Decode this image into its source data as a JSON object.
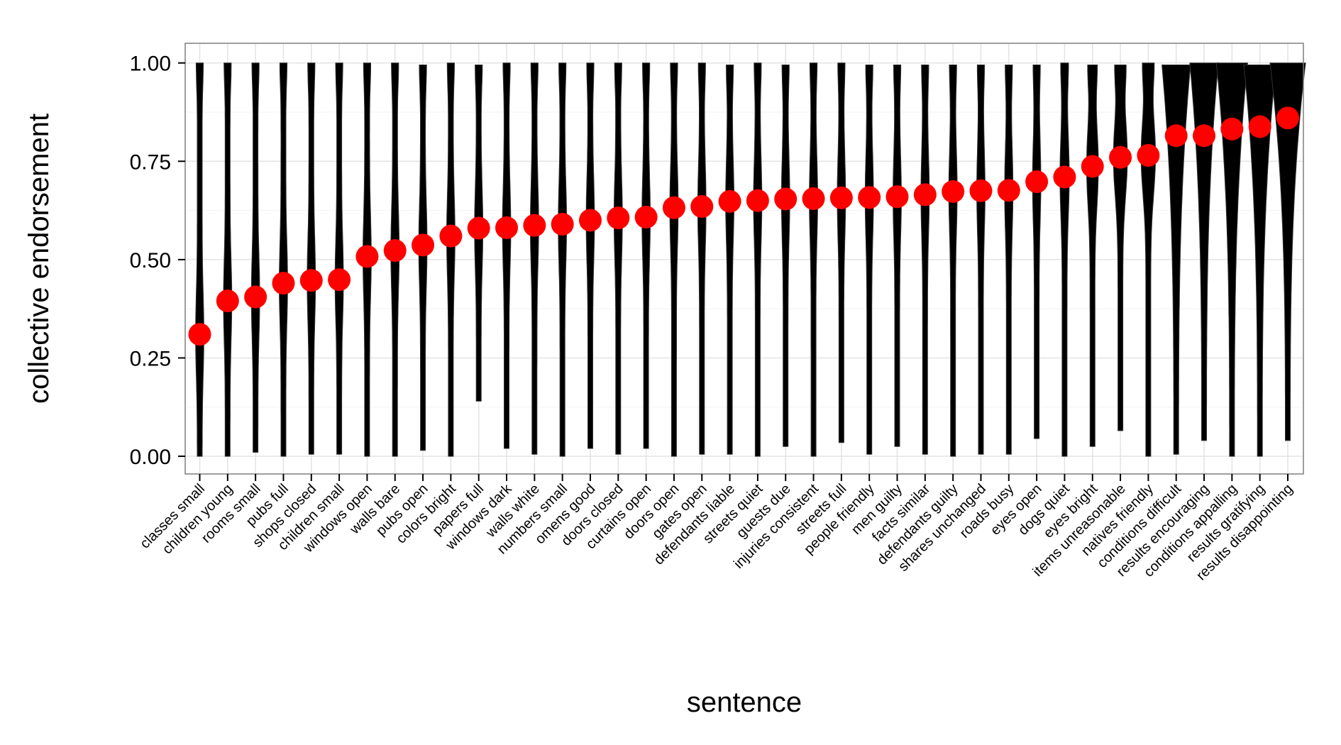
{
  "chart_data": {
    "type": "violin",
    "xlabel": "sentence",
    "ylabel": "collective endorsement",
    "ylim": [
      -0.045,
      1.05
    ],
    "yticks": [
      0.0,
      0.25,
      0.5,
      0.75,
      1.0
    ],
    "ytick_labels": [
      "0.00",
      "0.25",
      "0.50",
      "0.75",
      "1.00"
    ],
    "grid": true,
    "violin_color": "#000000",
    "point_color": "#ff0000",
    "categories": [
      "classes small",
      "children young",
      "rooms small",
      "pubs full",
      "shops closed",
      "children small",
      "windows open",
      "walls bare",
      "pubs open",
      "colors bright",
      "papers full",
      "windows dark",
      "walls white",
      "numbers small",
      "omens good",
      "doors closed",
      "curtains open",
      "doors open",
      "gates open",
      "defendants liable",
      "streets quiet",
      "guests due",
      "injuries consistent",
      "streets full",
      "people friendly",
      "men guilty",
      "facts similar",
      "defendants guilty",
      "shares unchanged",
      "roads busy",
      "eyes open",
      "dogs quiet",
      "eyes bright",
      "items unreasonable",
      "natives friendly",
      "conditions difficult",
      "results encouraging",
      "conditions appalling",
      "results gratifying",
      "results disappointing"
    ],
    "values": [
      0.31,
      0.395,
      0.405,
      0.44,
      0.447,
      0.449,
      0.508,
      0.523,
      0.537,
      0.56,
      0.58,
      0.581,
      0.587,
      0.59,
      0.6,
      0.606,
      0.608,
      0.632,
      0.635,
      0.648,
      0.65,
      0.654,
      0.655,
      0.657,
      0.658,
      0.66,
      0.665,
      0.673,
      0.675,
      0.676,
      0.698,
      0.71,
      0.737,
      0.76,
      0.765,
      0.815,
      0.815,
      0.832,
      0.838,
      0.86
    ],
    "ranges": [
      [
        0.0,
        1.0
      ],
      [
        0.0,
        1.0
      ],
      [
        0.01,
        1.0
      ],
      [
        0.0,
        1.0
      ],
      [
        0.005,
        1.0
      ],
      [
        0.005,
        1.0
      ],
      [
        0.0,
        1.0
      ],
      [
        0.0,
        1.0
      ],
      [
        0.015,
        0.995
      ],
      [
        0.0,
        1.0
      ],
      [
        0.14,
        0.995
      ],
      [
        0.02,
        1.0
      ],
      [
        0.005,
        1.0
      ],
      [
        0.0,
        1.0
      ],
      [
        0.02,
        1.0
      ],
      [
        0.005,
        1.0
      ],
      [
        0.02,
        1.0
      ],
      [
        0.0,
        1.0
      ],
      [
        0.005,
        1.0
      ],
      [
        0.005,
        0.995
      ],
      [
        0.0,
        1.0
      ],
      [
        0.025,
        0.995
      ],
      [
        0.0,
        1.0
      ],
      [
        0.035,
        1.0
      ],
      [
        0.005,
        0.995
      ],
      [
        0.025,
        0.995
      ],
      [
        0.005,
        0.995
      ],
      [
        0.0,
        0.995
      ],
      [
        0.005,
        0.995
      ],
      [
        0.005,
        0.995
      ],
      [
        0.045,
        0.995
      ],
      [
        0.0,
        1.0
      ],
      [
        0.025,
        0.995
      ],
      [
        0.065,
        0.995
      ],
      [
        0.0,
        1.0
      ],
      [
        0.005,
        0.995
      ],
      [
        0.04,
        1.0
      ],
      [
        0.0,
        1.0
      ],
      [
        0.0,
        0.995
      ],
      [
        0.04,
        1.0
      ]
    ]
  }
}
